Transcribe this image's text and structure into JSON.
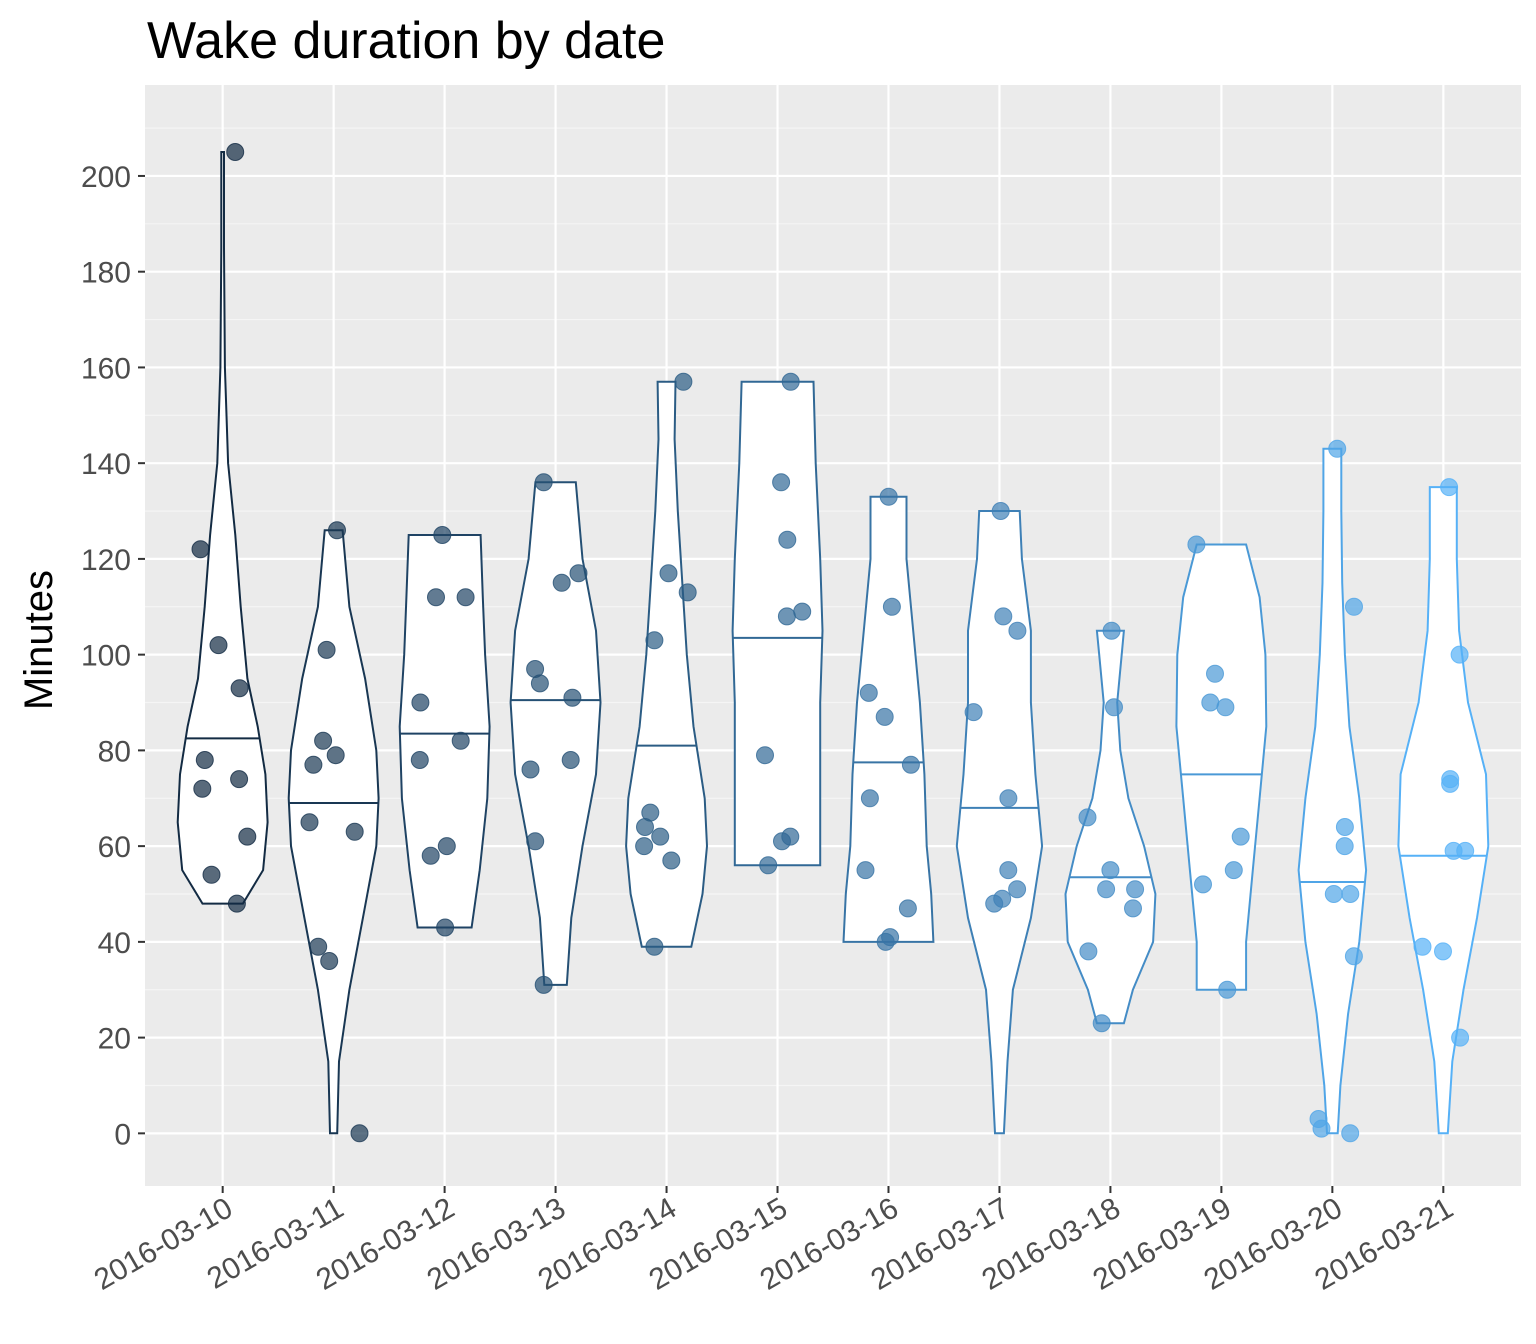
{
  "chart_data": {
    "type": "violin",
    "title": "Wake duration by date",
    "xlabel": "",
    "ylabel": "Minutes",
    "ylim": [
      -11,
      219
    ],
    "yticks": [
      0,
      20,
      40,
      60,
      80,
      100,
      120,
      140,
      160,
      180,
      200
    ],
    "grid": true,
    "legend": "none",
    "colors": {
      "panel_bg": "#ebebeb",
      "grid_major": "#ffffff",
      "grid_minor": "#f5f5f5",
      "color_low": "#132B43",
      "color_high": "#56B1F7"
    },
    "categories": [
      "2016-03-10",
      "2016-03-11",
      "2016-03-12",
      "2016-03-13",
      "2016-03-14",
      "2016-03-15",
      "2016-03-16",
      "2016-03-17",
      "2016-03-18",
      "2016-03-19",
      "2016-03-20",
      "2016-03-21"
    ],
    "groups": [
      {
        "date": "2016-03-10",
        "median": 82.5,
        "points": [
          205,
          122,
          102,
          93,
          78,
          74,
          72,
          62,
          54,
          48
        ],
        "profile": [
          [
            48,
            0.45
          ],
          [
            55,
            0.9
          ],
          [
            65,
            1.0
          ],
          [
            75,
            0.95
          ],
          [
            85,
            0.78
          ],
          [
            95,
            0.55
          ],
          [
            110,
            0.4
          ],
          [
            125,
            0.28
          ],
          [
            140,
            0.12
          ],
          [
            160,
            0.05
          ],
          [
            185,
            0.03
          ],
          [
            205,
            0.03
          ]
        ]
      },
      {
        "date": "2016-03-11",
        "median": 69,
        "points": [
          126,
          101,
          82,
          79,
          77,
          65,
          63,
          39,
          36,
          0
        ],
        "profile": [
          [
            0,
            0.08
          ],
          [
            15,
            0.12
          ],
          [
            30,
            0.35
          ],
          [
            45,
            0.65
          ],
          [
            60,
            0.95
          ],
          [
            70,
            1.0
          ],
          [
            80,
            0.95
          ],
          [
            95,
            0.7
          ],
          [
            110,
            0.35
          ],
          [
            126,
            0.2
          ]
        ]
      },
      {
        "date": "2016-03-12",
        "median": 83.5,
        "points": [
          125,
          112,
          112,
          90,
          82,
          78,
          60,
          58,
          43
        ],
        "profile": [
          [
            43,
            0.6
          ],
          [
            55,
            0.78
          ],
          [
            70,
            0.95
          ],
          [
            85,
            1.0
          ],
          [
            100,
            0.9
          ],
          [
            112,
            0.85
          ],
          [
            125,
            0.8
          ]
        ]
      },
      {
        "date": "2016-03-13",
        "median": 90.5,
        "points": [
          136,
          117,
          115,
          97,
          94,
          91,
          78,
          76,
          61,
          31
        ],
        "profile": [
          [
            31,
            0.25
          ],
          [
            45,
            0.35
          ],
          [
            60,
            0.6
          ],
          [
            75,
            0.9
          ],
          [
            90,
            1.0
          ],
          [
            105,
            0.9
          ],
          [
            120,
            0.6
          ],
          [
            136,
            0.45
          ]
        ]
      },
      {
        "date": "2016-03-14",
        "median": 81,
        "points": [
          157,
          117,
          113,
          103,
          67,
          64,
          62,
          60,
          57,
          39
        ],
        "profile": [
          [
            39,
            0.55
          ],
          [
            50,
            0.8
          ],
          [
            60,
            0.9
          ],
          [
            70,
            0.85
          ],
          [
            85,
            0.6
          ],
          [
            100,
            0.45
          ],
          [
            115,
            0.35
          ],
          [
            130,
            0.25
          ],
          [
            145,
            0.18
          ],
          [
            157,
            0.2
          ]
        ]
      },
      {
        "date": "2016-03-15",
        "median": 103.5,
        "points": [
          157,
          136,
          124,
          109,
          108,
          79,
          62,
          61,
          56
        ],
        "profile": [
          [
            56,
            0.95
          ],
          [
            70,
            0.95
          ],
          [
            90,
            0.95
          ],
          [
            105,
            1.0
          ],
          [
            120,
            0.95
          ],
          [
            140,
            0.85
          ],
          [
            157,
            0.8
          ]
        ]
      },
      {
        "date": "2016-03-16",
        "median": 77.5,
        "points": [
          133,
          110,
          92,
          87,
          77,
          70,
          55,
          47,
          41,
          40
        ],
        "profile": [
          [
            40,
            1.0
          ],
          [
            50,
            0.95
          ],
          [
            60,
            0.85
          ],
          [
            75,
            0.8
          ],
          [
            90,
            0.7
          ],
          [
            105,
            0.55
          ],
          [
            120,
            0.4
          ],
          [
            133,
            0.4
          ]
        ]
      },
      {
        "date": "2016-03-17",
        "median": 68,
        "points": [
          130,
          108,
          105,
          88,
          70,
          55,
          51,
          49,
          48
        ],
        "profile": [
          [
            0,
            0.1
          ],
          [
            15,
            0.18
          ],
          [
            30,
            0.3
          ],
          [
            45,
            0.7
          ],
          [
            60,
            0.95
          ],
          [
            75,
            0.8
          ],
          [
            90,
            0.7
          ],
          [
            105,
            0.7
          ],
          [
            120,
            0.5
          ],
          [
            130,
            0.45
          ]
        ]
      },
      {
        "date": "2016-03-18",
        "median": 53.5,
        "points": [
          105,
          89,
          66,
          55,
          51,
          51,
          47,
          38,
          23
        ],
        "profile": [
          [
            23,
            0.3
          ],
          [
            30,
            0.5
          ],
          [
            40,
            0.95
          ],
          [
            50,
            1.0
          ],
          [
            60,
            0.75
          ],
          [
            70,
            0.4
          ],
          [
            80,
            0.22
          ],
          [
            90,
            0.15
          ],
          [
            100,
            0.25
          ],
          [
            105,
            0.3
          ]
        ]
      },
      {
        "date": "2016-03-19",
        "median": 75,
        "points": [
          123,
          96,
          90,
          89,
          62,
          55,
          52,
          30
        ],
        "profile": [
          [
            30,
            0.55
          ],
          [
            40,
            0.55
          ],
          [
            55,
            0.7
          ],
          [
            70,
            0.85
          ],
          [
            85,
            1.0
          ],
          [
            100,
            0.98
          ],
          [
            112,
            0.85
          ],
          [
            123,
            0.55
          ]
        ]
      },
      {
        "date": "2016-03-20",
        "median": 52.5,
        "points": [
          143,
          110,
          64,
          60,
          50,
          50,
          37,
          3,
          1,
          0
        ],
        "profile": [
          [
            0,
            0.12
          ],
          [
            10,
            0.18
          ],
          [
            25,
            0.35
          ],
          [
            40,
            0.6
          ],
          [
            55,
            0.75
          ],
          [
            70,
            0.6
          ],
          [
            85,
            0.38
          ],
          [
            100,
            0.28
          ],
          [
            115,
            0.22
          ],
          [
            130,
            0.2
          ],
          [
            143,
            0.2
          ]
        ]
      },
      {
        "date": "2016-03-21",
        "median": 58,
        "points": [
          135,
          100,
          74,
          73,
          59,
          59,
          39,
          38,
          20
        ],
        "profile": [
          [
            0,
            0.1
          ],
          [
            15,
            0.2
          ],
          [
            30,
            0.45
          ],
          [
            45,
            0.75
          ],
          [
            60,
            1.0
          ],
          [
            75,
            0.95
          ],
          [
            90,
            0.55
          ],
          [
            105,
            0.35
          ],
          [
            120,
            0.3
          ],
          [
            135,
            0.3
          ]
        ]
      }
    ]
  }
}
